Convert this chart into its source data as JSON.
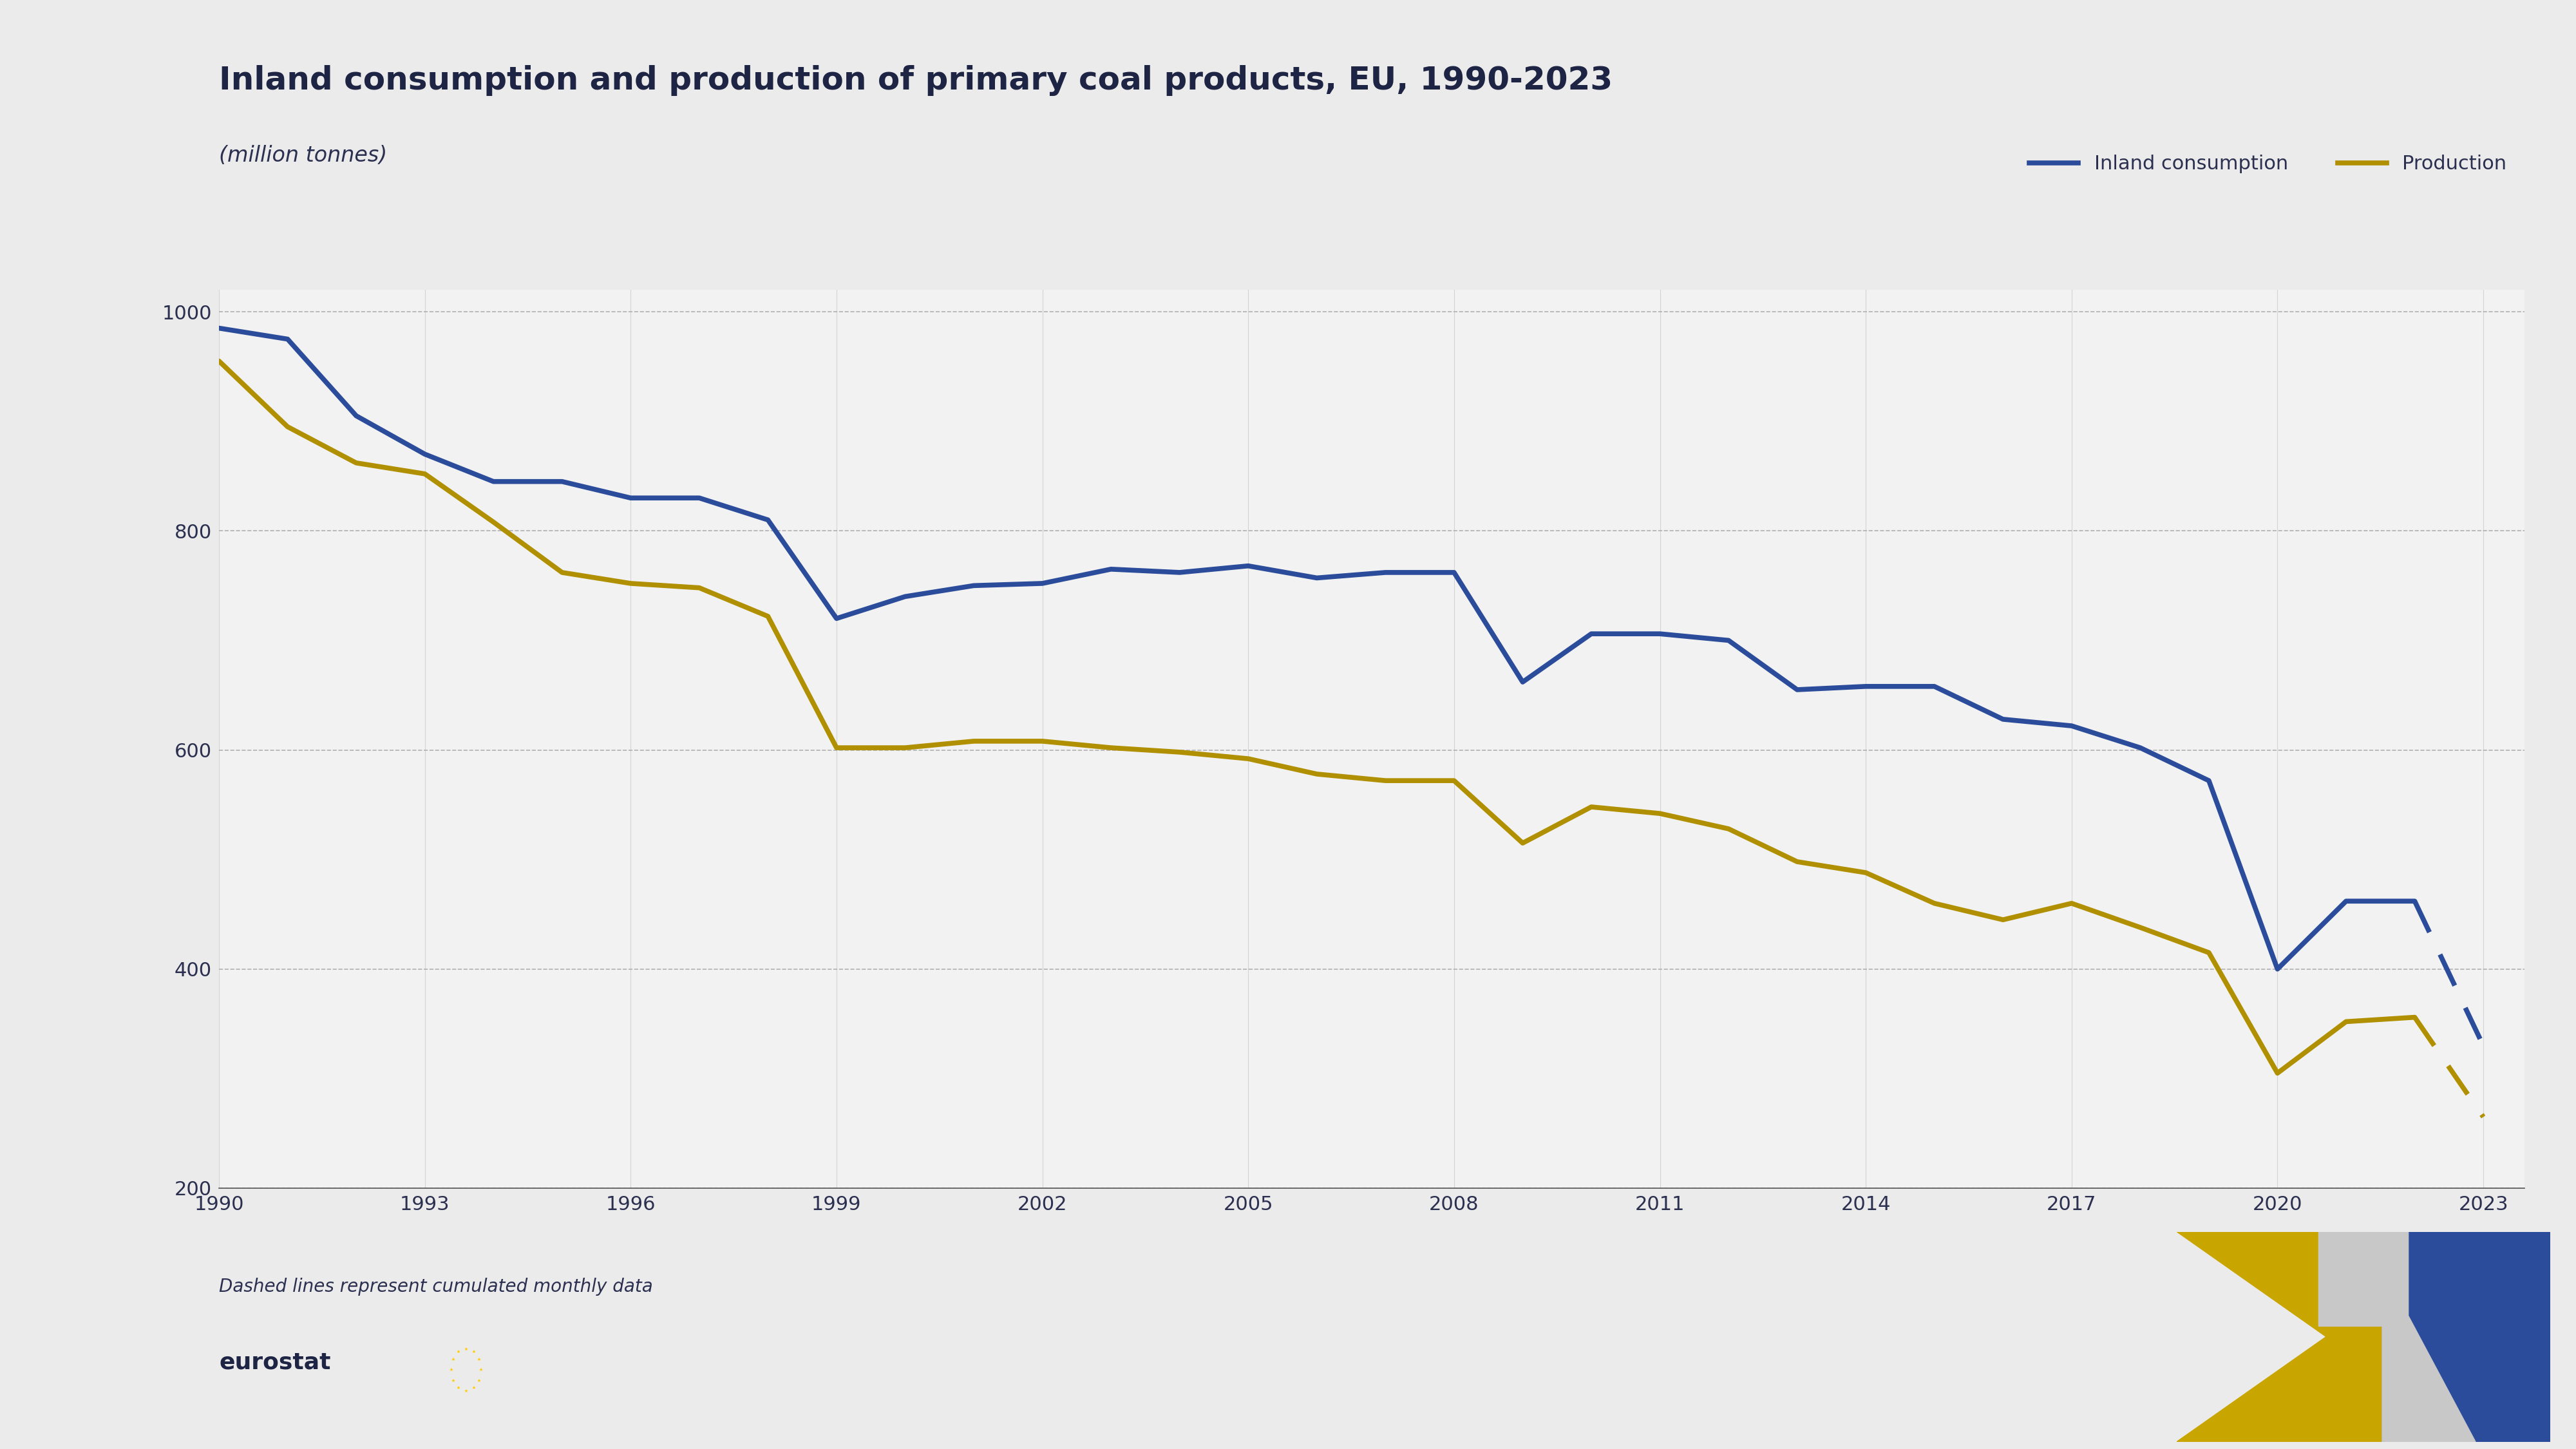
{
  "title": "Inland consumption and production of primary coal products, EU, 1990-2023",
  "subtitle": "(million tonnes)",
  "note": "Dashed lines represent cumulated monthly data",
  "background_color": "#ebebeb",
  "plot_bg_color": "#f2f2f2",
  "bottom_bg_color": "#ffffff",
  "inland_consumption_color": "#2b4c9b",
  "production_color": "#b09000",
  "years_solid": [
    1990,
    1991,
    1992,
    1993,
    1994,
    1995,
    1996,
    1997,
    1998,
    1999,
    2000,
    2001,
    2002,
    2003,
    2004,
    2005,
    2006,
    2007,
    2008,
    2009,
    2010,
    2011,
    2012,
    2013,
    2014,
    2015,
    2016,
    2017,
    2018,
    2019,
    2020,
    2021,
    2022
  ],
  "inland_consumption_solid": [
    985,
    975,
    905,
    870,
    845,
    845,
    830,
    830,
    810,
    720,
    740,
    750,
    752,
    765,
    762,
    768,
    757,
    762,
    762,
    662,
    706,
    706,
    700,
    655,
    658,
    658,
    628,
    622,
    602,
    572,
    400,
    462,
    462
  ],
  "production_solid": [
    955,
    895,
    862,
    852,
    808,
    762,
    752,
    748,
    722,
    602,
    602,
    608,
    608,
    602,
    598,
    592,
    578,
    572,
    572,
    515,
    548,
    542,
    528,
    498,
    488,
    460,
    445,
    460,
    438,
    415,
    305,
    352,
    356
  ],
  "years_dashed": [
    2022,
    2023
  ],
  "inland_consumption_dashed": [
    462,
    330
  ],
  "production_dashed": [
    356,
    265
  ],
  "ylim": [
    200,
    1020
  ],
  "yticks": [
    200,
    400,
    600,
    800,
    1000
  ],
  "xtick_start": 1990,
  "xtick_end": 2024,
  "xtick_step": 3,
  "xlim_left": 1990,
  "xlim_right": 2023.6,
  "title_fontsize": 36,
  "subtitle_fontsize": 24,
  "legend_fontsize": 22,
  "tick_fontsize": 22,
  "note_fontsize": 20,
  "eurostat_fontsize": 26,
  "line_width": 5.5
}
